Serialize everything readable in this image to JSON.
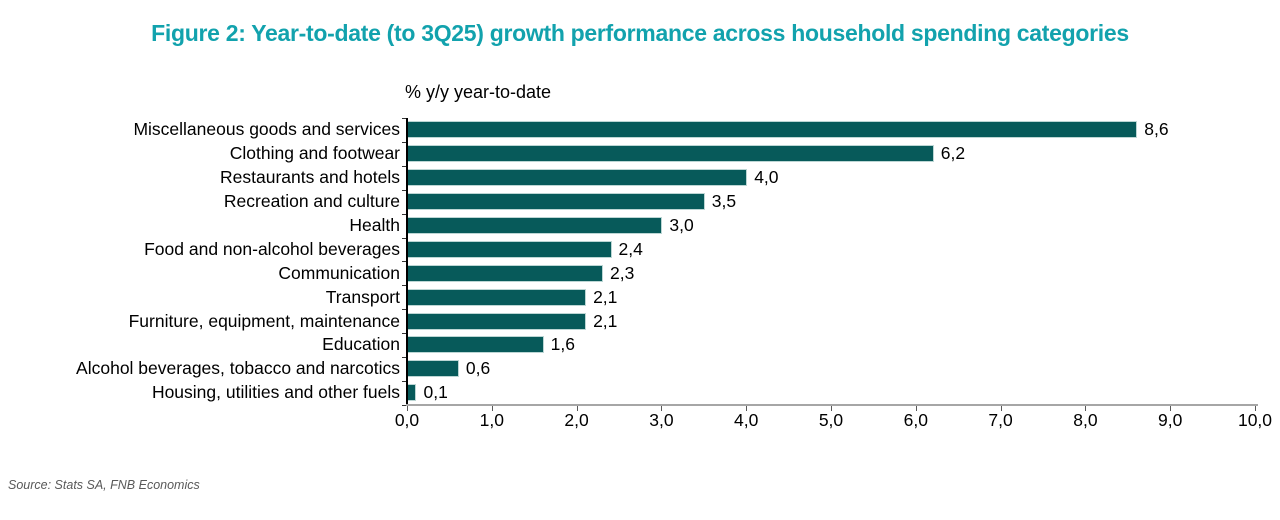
{
  "title": "Figure 2: Year-to-date (to 3Q25) growth performance across household spending categories",
  "source": "Source: Stats SA, FNB Economics",
  "colors": {
    "title": "#12A2AD",
    "bar_fill": "#075A5A",
    "bar_edge": "#BCD6D4",
    "x_axis_line": "#A6A6A6",
    "y_axis_line": "#000000",
    "text": "#000000",
    "source_text": "#595959"
  },
  "chart_data": {
    "type": "bar",
    "orientation": "horizontal",
    "title": "Figure 2: Year-to-date (to 3Q25) growth performance across household spending categories",
    "axis_title": "% y/y year-to-date",
    "categories": [
      "Miscellaneous goods and services",
      "Clothing and footwear",
      "Restaurants and hotels",
      "Recreation and culture",
      "Health",
      "Food and non-alcohol beverages",
      "Communication",
      "Transport",
      "Furniture, equipment, maintenance",
      "Education",
      "Alcohol beverages, tobacco and narcotics",
      "Housing, utilities and other fuels"
    ],
    "values": [
      8.6,
      6.2,
      4.0,
      3.5,
      3.0,
      2.4,
      2.3,
      2.1,
      2.1,
      1.6,
      0.6,
      0.1
    ],
    "value_labels": [
      "8,6",
      "6,2",
      "4,0",
      "3,5",
      "3,0",
      "2,4",
      "2,3",
      "2,1",
      "2,1",
      "1,6",
      "0,6",
      "0,1"
    ],
    "xlim": [
      0,
      10
    ],
    "x_tick_values": [
      0,
      1,
      2,
      3,
      4,
      5,
      6,
      7,
      8,
      9,
      10
    ],
    "x_tick_labels": [
      "0,0",
      "1,0",
      "2,0",
      "3,0",
      "4,0",
      "5,0",
      "6,0",
      "7,0",
      "8,0",
      "9,0",
      "10,0"
    ],
    "grid": false,
    "legend": "none",
    "value_labels_position": "end-of-bar"
  }
}
